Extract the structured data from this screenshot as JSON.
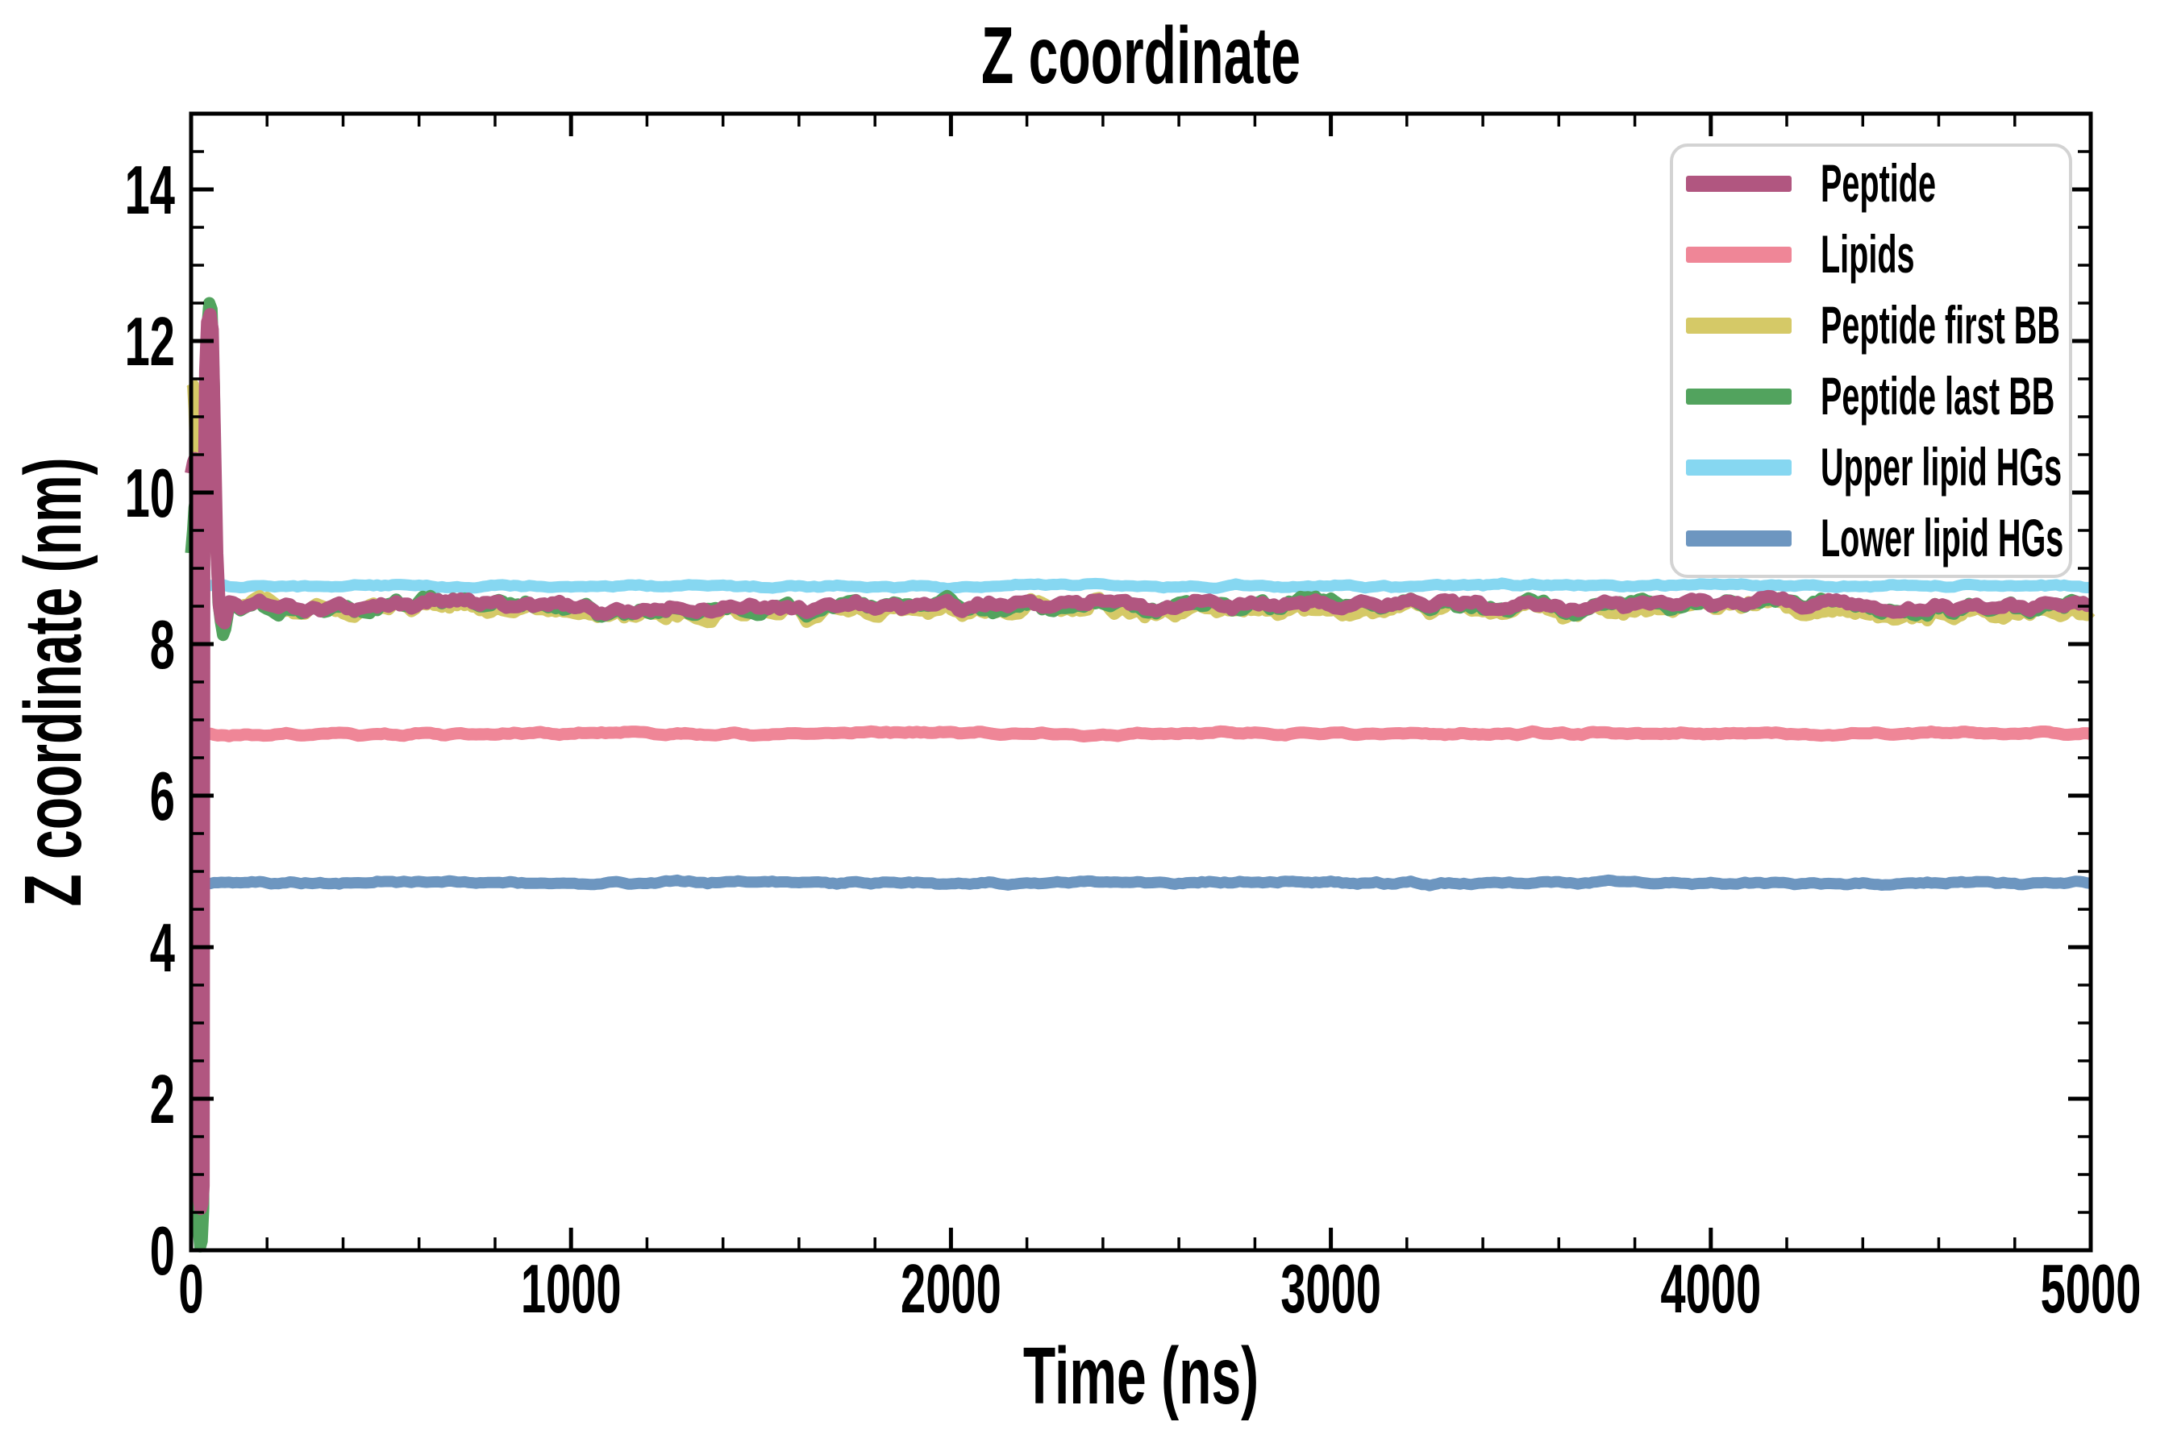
{
  "page": {
    "background": "#ffffff"
  },
  "style": {
    "axis_color": "#000000",
    "legend_border_color": "#d3d3d3",
    "legend_background": "#ffffff"
  },
  "chart_data": {
    "type": "line",
    "title": "Z coordinate",
    "xlabel": "Time (ns)",
    "ylabel": "Z coordinate (nm)",
    "xlim": [
      0,
      5000
    ],
    "ylim": [
      0,
      15
    ],
    "x_major_ticks": [
      0,
      1000,
      2000,
      3000,
      4000,
      5000
    ],
    "x_minor_step": 200,
    "y_major_ticks": [
      0,
      2,
      4,
      6,
      8,
      10,
      12,
      14
    ],
    "y_minor_step": 0.5,
    "grid": false,
    "tick_direction": "in",
    "legend": {
      "position": "upper right",
      "entries": [
        "Peptide",
        "Lipids",
        "Peptide first BB",
        "Peptide last BB",
        "Upper lipid HGs",
        "Lower lipid HGs"
      ]
    },
    "sampling": {
      "step_ns": 10,
      "steady_start_ns": 100,
      "group_seed": 1234
    },
    "draw_order": [
      "Upper lipid HGs",
      "Lower lipid HGs",
      "Lipids",
      "Peptide first BB",
      "Peptide last BB",
      "Peptide"
    ],
    "series": [
      {
        "name": "Peptide",
        "color": "#b15680",
        "linewidth": 16,
        "steady_mean": 8.52,
        "group_fast": 0.09,
        "group_slow": 0.07,
        "own_fast": 0.05,
        "own_slow": 0.03,
        "seed": 11,
        "transient": [
          [
            0,
            10.25
          ],
          [
            6,
            10.4
          ],
          [
            10,
            10.45
          ],
          [
            13,
            10.3
          ],
          [
            15,
            0.95
          ],
          [
            20,
            0.75
          ],
          [
            25,
            0.55
          ],
          [
            29,
            0.62
          ],
          [
            32,
            0.85
          ],
          [
            34,
            9.7
          ],
          [
            38,
            11.6
          ],
          [
            43,
            12.25
          ],
          [
            50,
            12.35
          ],
          [
            56,
            12.15
          ],
          [
            62,
            10.7
          ],
          [
            68,
            9.2
          ],
          [
            74,
            8.5
          ],
          [
            80,
            8.32
          ],
          [
            88,
            8.28
          ],
          [
            95,
            8.42
          ]
        ]
      },
      {
        "name": "Lipids",
        "color": "#ef8697",
        "linewidth": 15,
        "steady_mean": 6.82,
        "group_fast": 0,
        "group_slow": 0,
        "own_fast": 0.035,
        "own_slow": 0.02,
        "seed": 21,
        "transient": []
      },
      {
        "name": "Peptide first BB",
        "color": "#d5c967",
        "linewidth": 15,
        "steady_mean": 8.46,
        "group_fast": 0.09,
        "group_slow": 0.07,
        "own_fast": 0.1,
        "own_slow": 0.05,
        "seed": 31,
        "transient": [
          [
            0,
            11.45
          ],
          [
            5,
            11.42
          ],
          [
            9,
            11.1
          ],
          [
            13,
            10.4
          ],
          [
            15,
            1.35
          ],
          [
            20,
            1.05
          ],
          [
            25,
            0.7
          ],
          [
            29,
            0.62
          ],
          [
            32,
            0.95
          ],
          [
            34,
            10.3
          ],
          [
            38,
            11.2
          ],
          [
            44,
            11.85
          ],
          [
            50,
            11.9
          ],
          [
            56,
            11.55
          ],
          [
            62,
            10.4
          ],
          [
            68,
            9.1
          ],
          [
            74,
            8.55
          ],
          [
            80,
            8.4
          ],
          [
            88,
            8.32
          ],
          [
            95,
            8.4
          ]
        ]
      },
      {
        "name": "Peptide last BB",
        "color": "#52a35e",
        "linewidth": 15,
        "steady_mean": 8.5,
        "group_fast": 0.09,
        "group_slow": 0.07,
        "own_fast": 0.1,
        "own_slow": 0.05,
        "seed": 41,
        "transient": [
          [
            0,
            9.2
          ],
          [
            5,
            9.5
          ],
          [
            9,
            9.8
          ],
          [
            13,
            9.92
          ],
          [
            15,
            0.5
          ],
          [
            19,
            0.3
          ],
          [
            24,
            0.05
          ],
          [
            28,
            0.12
          ],
          [
            32,
            0.55
          ],
          [
            34,
            9.1
          ],
          [
            38,
            11.0
          ],
          [
            43,
            12.2
          ],
          [
            48,
            12.5
          ],
          [
            54,
            12.42
          ],
          [
            60,
            11.4
          ],
          [
            66,
            9.5
          ],
          [
            72,
            8.55
          ],
          [
            78,
            8.3
          ],
          [
            84,
            8.12
          ],
          [
            90,
            8.2
          ],
          [
            95,
            8.35
          ]
        ]
      },
      {
        "name": "Upper lipid HGs",
        "color": "#86d7f1",
        "linewidth": 14,
        "steady_mean": 8.77,
        "group_fast": 0,
        "group_slow": 0,
        "own_fast": 0.035,
        "own_slow": 0.022,
        "seed": 51,
        "transient": []
      },
      {
        "name": "Lower lipid HGs",
        "color": "#6d96c0",
        "linewidth": 14,
        "steady_mean": 4.85,
        "group_fast": 0,
        "group_slow": 0,
        "own_fast": 0.03,
        "own_slow": 0.018,
        "seed": 61,
        "transient": []
      }
    ]
  }
}
